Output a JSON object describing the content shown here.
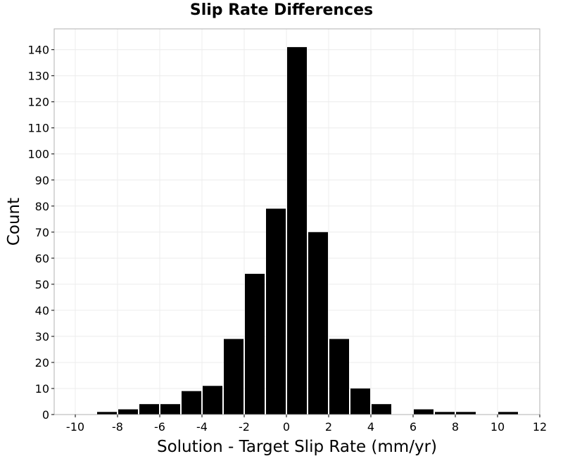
{
  "chart_data": {
    "type": "bar",
    "title": "Slip Rate Differences",
    "xlabel": "Solution - Target Slip Rate (mm/yr)",
    "ylabel": "Count",
    "xlim": [
      -11,
      12
    ],
    "ylim": [
      0,
      148
    ],
    "x_ticks": [
      -10,
      -8,
      -6,
      -4,
      -2,
      0,
      2,
      4,
      6,
      8,
      10,
      12
    ],
    "y_ticks": [
      0,
      10,
      20,
      30,
      40,
      50,
      60,
      70,
      80,
      90,
      100,
      110,
      120,
      130,
      140
    ],
    "bin_width": 1,
    "bins": [
      {
        "x": -8.5,
        "count": 1
      },
      {
        "x": -7.5,
        "count": 2
      },
      {
        "x": -6.5,
        "count": 4
      },
      {
        "x": -5.5,
        "count": 4
      },
      {
        "x": -4.5,
        "count": 9
      },
      {
        "x": -3.5,
        "count": 11
      },
      {
        "x": -2.5,
        "count": 29
      },
      {
        "x": -1.5,
        "count": 54
      },
      {
        "x": -0.5,
        "count": 79
      },
      {
        "x": 0.5,
        "count": 141
      },
      {
        "x": 1.5,
        "count": 70
      },
      {
        "x": 2.5,
        "count": 29
      },
      {
        "x": 3.5,
        "count": 10
      },
      {
        "x": 4.5,
        "count": 4
      },
      {
        "x": 6.5,
        "count": 2
      },
      {
        "x": 7.5,
        "count": 1
      },
      {
        "x": 8.5,
        "count": 1
      },
      {
        "x": 10.5,
        "count": 1
      }
    ],
    "bar_color": "#000000",
    "grid": true,
    "legend": "none"
  }
}
